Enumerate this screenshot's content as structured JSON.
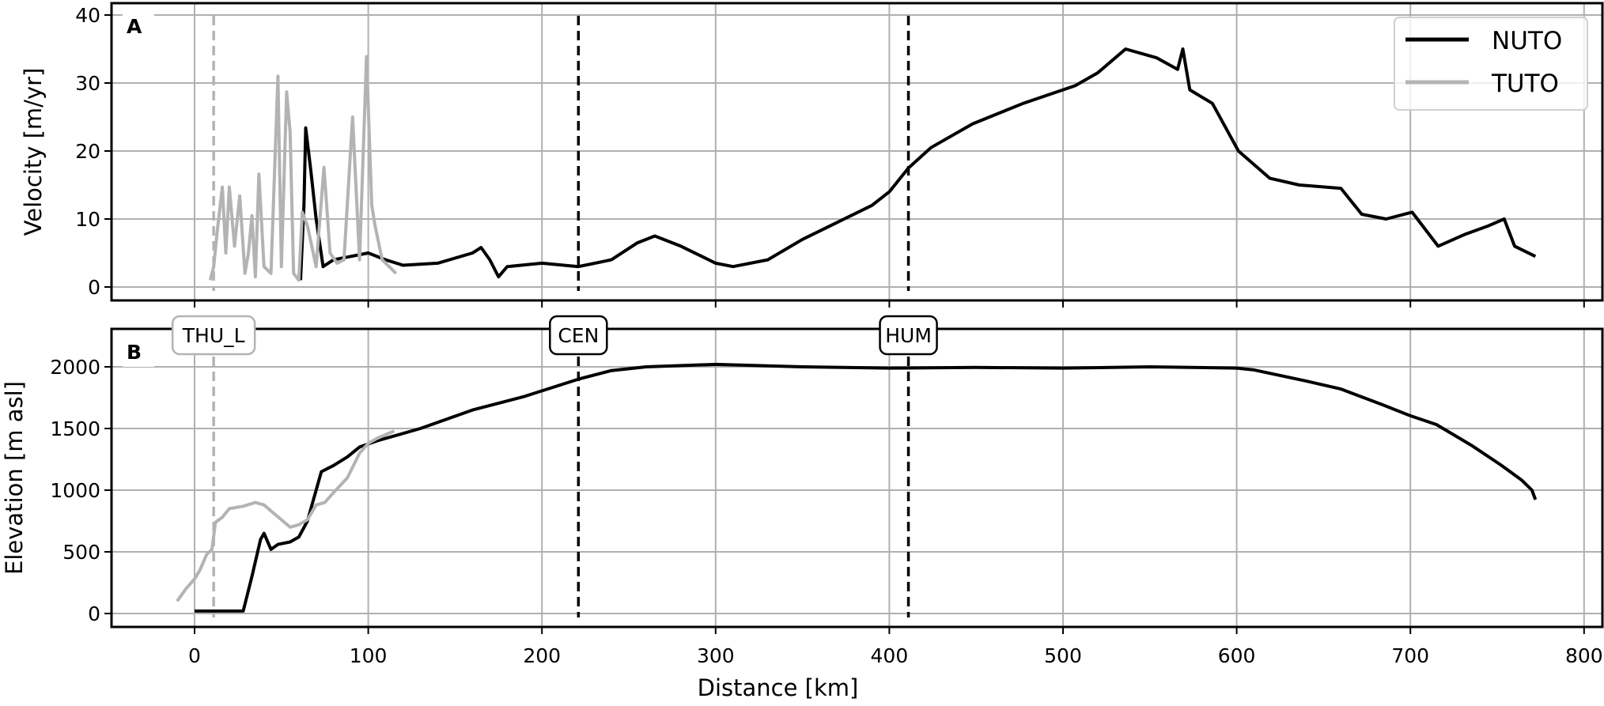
{
  "chart_data": [
    {
      "type": "line",
      "panel_label": "A",
      "xlabel": "",
      "ylabel": "Velocity [m/yr]",
      "xlim": [
        -50,
        810
      ],
      "ylim": [
        -2,
        42
      ],
      "xticks": [
        0,
        100,
        200,
        300,
        400,
        500,
        600,
        700,
        800
      ],
      "yticks": [
        0,
        10,
        20,
        30,
        40
      ],
      "grid": true,
      "legend": "top-right",
      "series": [
        {
          "name": "NUTO",
          "color": "#000000",
          "x": [
            61,
            63,
            64,
            67,
            70,
            74,
            80,
            90,
            100,
            110,
            120,
            140,
            160,
            165,
            170,
            175,
            180,
            200,
            221,
            240,
            255,
            265,
            280,
            300,
            310,
            330,
            350,
            370,
            390,
            400,
            411,
            424,
            448,
            477,
            507,
            520,
            536,
            554,
            566,
            569,
            573,
            586,
            601,
            619,
            636,
            660,
            672,
            686,
            701,
            716,
            731,
            745,
            754,
            760,
            772
          ],
          "y": [
            1,
            12,
            23.4,
            17,
            10,
            3,
            4,
            4.5,
            5,
            4,
            3.2,
            3.5,
            5,
            5.8,
            4,
            1.5,
            3,
            3.5,
            3,
            4,
            6.5,
            7.5,
            6,
            3.5,
            3,
            4,
            7,
            9.5,
            12,
            14,
            17.5,
            20.5,
            24,
            27,
            29.6,
            31.5,
            35,
            33.7,
            32,
            35,
            29,
            27,
            20,
            16,
            15,
            14.5,
            10.7,
            10,
            11,
            6,
            7.7,
            9,
            10,
            6,
            4.5
          ]
        },
        {
          "name": "TUTO",
          "color": "#b3b3b3",
          "x": [
            9,
            11,
            13,
            16,
            18,
            20,
            23,
            26,
            29,
            31,
            33,
            35,
            37,
            40,
            44,
            48,
            50,
            53,
            55,
            57,
            60,
            62,
            65,
            70,
            74.5,
            78,
            82,
            86,
            91,
            95,
            99,
            102,
            104,
            108,
            112,
            116
          ],
          "y": [
            1,
            3,
            8,
            14.7,
            5,
            14.7,
            6,
            13.4,
            2,
            5,
            10.5,
            1.5,
            16.6,
            3,
            2,
            31,
            3,
            28.7,
            22.8,
            2,
            1,
            11,
            9,
            3,
            17.6,
            5,
            3.5,
            4,
            25,
            4,
            33.9,
            12,
            8.9,
            4,
            3,
            2
          ]
        }
      ],
      "vlines": [
        {
          "x": 11,
          "color": "#b3b3b3"
        },
        {
          "x": 221,
          "color": "#000000"
        },
        {
          "x": 411,
          "color": "#000000"
        }
      ]
    },
    {
      "type": "line",
      "panel_label": "B",
      "xlabel": "Distance [km]",
      "ylabel": "Elevation [m asl]",
      "xlim": [
        -50,
        810
      ],
      "ylim": [
        -100,
        2350
      ],
      "xticks": [
        0,
        100,
        200,
        300,
        400,
        500,
        600,
        700,
        800
      ],
      "yticks": [
        0,
        500,
        1000,
        1500,
        2000
      ],
      "grid": true,
      "series": [
        {
          "name": "NUTO",
          "color": "#000000",
          "x": [
            0,
            28,
            33,
            38,
            40,
            44,
            48,
            55,
            60,
            65,
            70,
            73,
            80,
            88,
            95,
            105,
            130,
            160,
            190,
            221,
            240,
            260,
            300,
            350,
            400,
            450,
            500,
            550,
            600,
            610,
            640,
            660,
            684,
            700,
            715,
            735,
            752,
            764,
            770,
            772
          ],
          "y": [
            20,
            20,
            300,
            600,
            650,
            520,
            560,
            580,
            620,
            750,
            1000,
            1150,
            1200,
            1270,
            1350,
            1400,
            1500,
            1650,
            1760,
            1900,
            1970,
            2000,
            2020,
            2000,
            1990,
            1995,
            1990,
            2000,
            1990,
            1975,
            1885,
            1820,
            1692,
            1603,
            1532,
            1365,
            1205,
            1083,
            1000,
            923
          ]
        },
        {
          "name": "TUTO",
          "color": "#b3b3b3",
          "x": [
            -10,
            -5,
            0,
            3,
            7,
            10,
            12,
            16,
            20,
            28,
            35,
            40,
            45,
            50,
            55,
            60,
            65,
            70,
            75,
            80,
            88,
            95,
            100,
            105,
            115
          ],
          "y": [
            100,
            200,
            280,
            350,
            480,
            520,
            740,
            780,
            850,
            870,
            900,
            880,
            820,
            760,
            700,
            720,
            760,
            880,
            900,
            980,
            1100,
            1300,
            1380,
            1420,
            1480
          ]
        }
      ],
      "vlines": [
        {
          "x": 11,
          "color": "#b3b3b3",
          "label": "THU_L"
        },
        {
          "x": 221,
          "color": "#000000",
          "label": "CEN"
        },
        {
          "x": 411,
          "color": "#000000",
          "label": "HUM"
        }
      ]
    }
  ]
}
